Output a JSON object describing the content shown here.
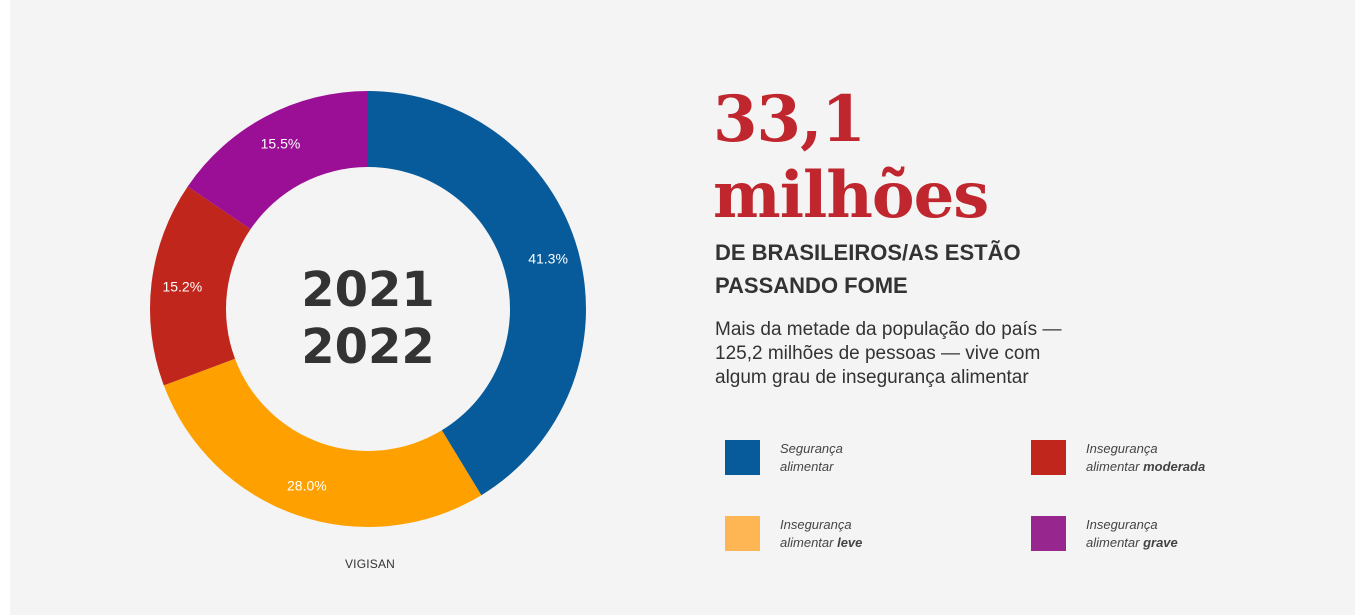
{
  "colors": {
    "seguranca": "#075b9b",
    "leve": "#fea100",
    "moderada": "#c0261c",
    "grave": "#9a0f95",
    "legend_leve": "#feb554",
    "legend_grave": "#97268f",
    "headline_red": "#c0262d"
  },
  "chart_data": {
    "type": "pie",
    "variant": "donut",
    "center_labels": [
      "2021",
      "2022"
    ],
    "source": "VIGISAN",
    "slices": [
      {
        "key": "seguranca",
        "value": 41.3,
        "label": "41.3%"
      },
      {
        "key": "leve",
        "value": 28.0,
        "label": "28.0%"
      },
      {
        "key": "moderada",
        "value": 15.2,
        "label": "15.2%"
      },
      {
        "key": "grave",
        "value": 15.5,
        "label": "15.5%"
      }
    ]
  },
  "headline": {
    "number_line1": "33,1",
    "number_line2": "milhões",
    "subtitle_line1": "DE BRASILEIROS/AS ESTÃO",
    "subtitle_line2": "PASSANDO FOME",
    "description": "Mais da metade da população do país — 125,2 milhões de pessoas — vive com algum grau de insegurança alimentar"
  },
  "legend": [
    {
      "key": "seguranca",
      "line1": "Segurança",
      "line2_plain": "alimentar",
      "line2_bold": ""
    },
    {
      "key": "moderada",
      "line1": "Insegurança",
      "line2_plain": "alimentar ",
      "line2_bold": "moderada"
    },
    {
      "key": "leve",
      "line1": "Insegurança",
      "line2_plain": "alimentar ",
      "line2_bold": "leve"
    },
    {
      "key": "grave",
      "line1": "Insegurança",
      "line2_plain": "alimentar ",
      "line2_bold": "grave"
    }
  ]
}
